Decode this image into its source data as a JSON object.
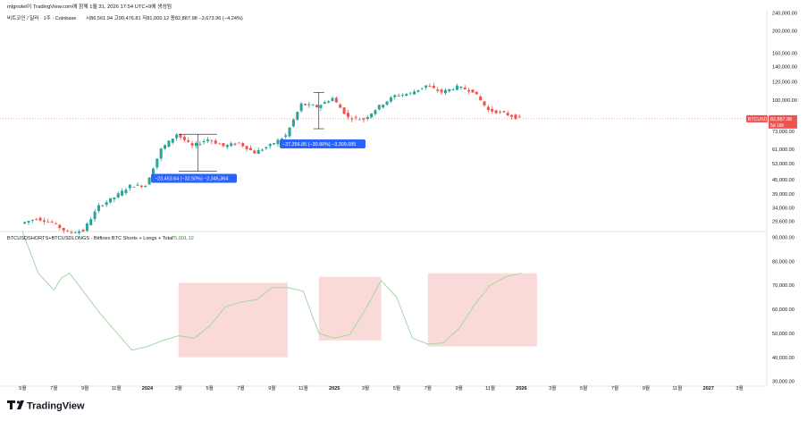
{
  "header": {
    "published_by": "mlgnolet이 TradingView.com에 함께 1월 31, 2026 17:54 UTC+9에 생성됨",
    "symbol_line": "비트코인 / 달러 · 1주 · Coinbase",
    "ohlc": {
      "o": "시86,561.94",
      "h": "고90,476.81",
      "l": "저81,000.12",
      "c": "종82,887.98",
      "chg": "−3,673.96 (−4.24%)"
    }
  },
  "price_badge": {
    "symbol": "BTCUSD",
    "price": "82,887.98",
    "countdown": "5d 16h"
  },
  "indicator": {
    "title": "BTCUSDSHORTS+BTCUSDLONGS · Bitfinex BTC Shorts + Longs + Total",
    "value": "75,001.12"
  },
  "annotations": [
    {
      "text": "−23,453.64 (−32.50%) −2,345,364"
    },
    {
      "text": "−37,356.85 (−30.80%) −3,309,085"
    }
  ],
  "logo": {
    "text": "TradingView"
  },
  "colors": {
    "up": "#26a69a",
    "down": "#ef5350",
    "line": "#a5d6a7",
    "badge": "#2962ff",
    "box": "#f8c5c5",
    "price_line": "#ef5350"
  },
  "chart_data": [
    {
      "type": "candlestick",
      "title": "",
      "y_scale": "log",
      "ylim": [
        27000,
        245000
      ],
      "y_ticks": [
        "240,000.00",
        "200,000.00",
        "160,000.00",
        "140,000.00",
        "120,000.00",
        "100,000.00",
        "73,000.00",
        "61,000.00",
        "53,000.00",
        "45,000.00",
        "39,000.00",
        "34,000.00",
        "29,600.00"
      ],
      "x_ticks": [
        "5월",
        "7월",
        "9월",
        "11월",
        "2024",
        "3월",
        "5월",
        "7월",
        "9월",
        "11월",
        "2025",
        "3월",
        "5월",
        "7월",
        "9월",
        "11월",
        "2026",
        "3월",
        "5월",
        "7월",
        "9월",
        "11월",
        "2027",
        "3월"
      ],
      "last_price": 82887.98,
      "series_points": [
        {
          "x": "2023-05",
          "y": 29000
        },
        {
          "x": "2023-06",
          "y": 30500
        },
        {
          "x": "2023-07",
          "y": 29300
        },
        {
          "x": "2023-08",
          "y": 26500
        },
        {
          "x": "2023-09",
          "y": 27000
        },
        {
          "x": "2023-10",
          "y": 34500
        },
        {
          "x": "2023-11",
          "y": 37700
        },
        {
          "x": "2023-12",
          "y": 42300
        },
        {
          "x": "2024-01",
          "y": 42500
        },
        {
          "x": "2024-02",
          "y": 61000
        },
        {
          "x": "2024-03",
          "y": 71000
        },
        {
          "x": "2024-04",
          "y": 63000
        },
        {
          "x": "2024-05",
          "y": 67500
        },
        {
          "x": "2024-06",
          "y": 63000
        },
        {
          "x": "2024-07",
          "y": 65000
        },
        {
          "x": "2024-08",
          "y": 59000
        },
        {
          "x": "2024-09",
          "y": 63500
        },
        {
          "x": "2024-10",
          "y": 70000
        },
        {
          "x": "2024-11",
          "y": 96000
        },
        {
          "x": "2024-12",
          "y": 93500
        },
        {
          "x": "2025-01",
          "y": 102000
        },
        {
          "x": "2025-02",
          "y": 84000
        },
        {
          "x": "2025-03",
          "y": 82500
        },
        {
          "x": "2025-04",
          "y": 94000
        },
        {
          "x": "2025-05",
          "y": 104500
        },
        {
          "x": "2025-06",
          "y": 107000
        },
        {
          "x": "2025-07",
          "y": 115700
        },
        {
          "x": "2025-08",
          "y": 108200
        },
        {
          "x": "2025-09",
          "y": 114000
        },
        {
          "x": "2025-10",
          "y": 109500
        },
        {
          "x": "2025-11",
          "y": 90400
        },
        {
          "x": "2025-12",
          "y": 87500
        },
        {
          "x": "2026-01",
          "y": 82888
        }
      ]
    },
    {
      "type": "line",
      "title": "",
      "ylim": [
        28000,
        92000
      ],
      "y_ticks": [
        "90,000.00",
        "80,000.00",
        "70,000.00",
        "60,000.00",
        "50,000.00",
        "40,000.00",
        "30,000.00"
      ],
      "series": [
        {
          "values": [
            {
              "x": "2023-05",
              "y": 108000
            },
            {
              "x": "2023-06",
              "y": 75000
            },
            {
              "x": "2023-07",
              "y": 68000
            },
            {
              "x": "2023-07-15",
              "y": 73000
            },
            {
              "x": "2023-08",
              "y": 75000
            },
            {
              "x": "2023-10",
              "y": 58000
            },
            {
              "x": "2023-12",
              "y": 43000
            },
            {
              "x": "2024-01",
              "y": 44500
            },
            {
              "x": "2024-02",
              "y": 47000
            },
            {
              "x": "2024-03",
              "y": 49000
            },
            {
              "x": "2024-04",
              "y": 48000
            },
            {
              "x": "2024-05",
              "y": 53000
            },
            {
              "x": "2024-06",
              "y": 61000
            },
            {
              "x": "2024-07",
              "y": 63000
            },
            {
              "x": "2024-08",
              "y": 64000
            },
            {
              "x": "2024-09",
              "y": 69000
            },
            {
              "x": "2024-10",
              "y": 69000
            },
            {
              "x": "2024-11",
              "y": 67500
            },
            {
              "x": "2024-12",
              "y": 50000
            },
            {
              "x": "2025-01",
              "y": 48000
            },
            {
              "x": "2025-02",
              "y": 49500
            },
            {
              "x": "2025-03",
              "y": 60000
            },
            {
              "x": "2025-04",
              "y": 72000
            },
            {
              "x": "2025-05",
              "y": 65000
            },
            {
              "x": "2025-06",
              "y": 48000
            },
            {
              "x": "2025-07",
              "y": 45500
            },
            {
              "x": "2025-08",
              "y": 46000
            },
            {
              "x": "2025-09",
              "y": 52000
            },
            {
              "x": "2025-10",
              "y": 62000
            },
            {
              "x": "2025-11",
              "y": 70000
            },
            {
              "x": "2025-12",
              "y": 73500
            },
            {
              "x": "2026-01",
              "y": 75001
            }
          ]
        }
      ],
      "highlight_ranges": [
        {
          "from": "2024-03",
          "to": "2024-10",
          "y": [
            40000,
            71000
          ]
        },
        {
          "from": "2024-12",
          "to": "2025-04",
          "y": [
            47000,
            73500
          ]
        },
        {
          "from": "2025-07",
          "to": "2026-02",
          "y": [
            44500,
            75000
          ]
        }
      ]
    }
  ]
}
